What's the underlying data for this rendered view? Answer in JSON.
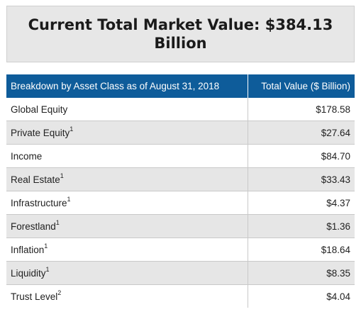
{
  "headline": {
    "text": "Current Total Market Value: $384.13 Billion"
  },
  "table": {
    "headers": {
      "category": "Breakdown by Asset Class as of August 31, 2018",
      "value": "Total Value ($ Billion)"
    },
    "rows": [
      {
        "label": "Global Equity",
        "note": "",
        "value": "$178.58"
      },
      {
        "label": "Private Equity",
        "note": "1",
        "value": "$27.64"
      },
      {
        "label": "Income",
        "note": "",
        "value": "$84.70"
      },
      {
        "label": "Real Estate",
        "note": "1",
        "value": "$33.43"
      },
      {
        "label": "Infrastructure",
        "note": "1",
        "value": "$4.37"
      },
      {
        "label": "Forestland",
        "note": "1",
        "value": "$1.36"
      },
      {
        "label": "Inflation",
        "note": "1",
        "value": "$18.64"
      },
      {
        "label": "Liquidity",
        "note": "1",
        "value": "$8.35"
      },
      {
        "label": "Trust Level",
        "note": "2",
        "value": "$4.04"
      }
    ]
  },
  "colors": {
    "header_blue": "#0e5c9a",
    "alt_row_gray": "#e6e6e6",
    "headline_box_gray": "#e7e7e7"
  }
}
